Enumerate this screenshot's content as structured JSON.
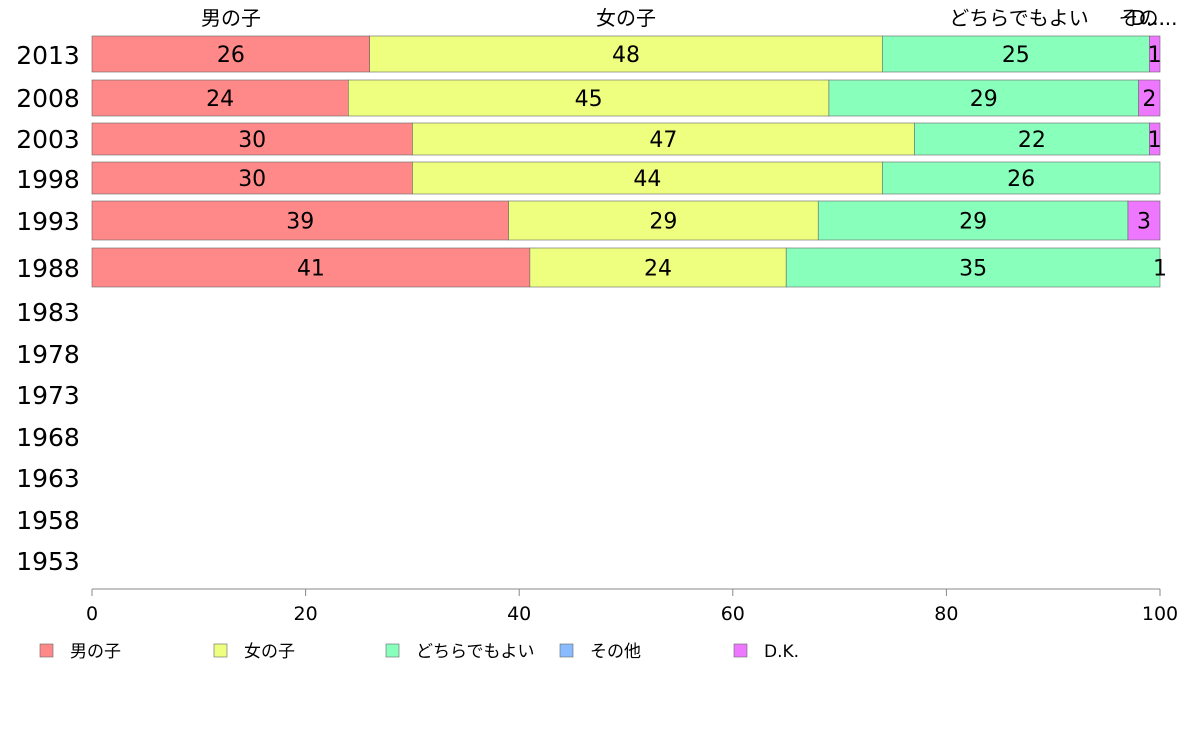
{
  "chart_data": {
    "type": "bar",
    "orientation": "horizontal",
    "stacked": true,
    "xlim": [
      0,
      100
    ],
    "x_ticks": [
      "0",
      "20",
      "40",
      "60",
      "80",
      "100"
    ],
    "categories": [
      "2013",
      "2008",
      "2003",
      "1998",
      "1993",
      "1988",
      "1983",
      "1978",
      "1973",
      "1968",
      "1963",
      "1958",
      "1953"
    ],
    "series": [
      {
        "name": "男の子",
        "color": "#ff8888",
        "values": [
          26,
          24,
          30,
          30,
          39,
          41,
          null,
          null,
          null,
          null,
          null,
          null,
          null
        ]
      },
      {
        "name": "女の子",
        "color": "#eeff80",
        "values": [
          48,
          45,
          47,
          44,
          29,
          24,
          null,
          null,
          null,
          null,
          null,
          null,
          null
        ]
      },
      {
        "name": "どちらでもよい",
        "color": "#88ffbb",
        "values": [
          25,
          29,
          22,
          26,
          29,
          35,
          null,
          null,
          null,
          null,
          null,
          null,
          null
        ]
      },
      {
        "name": "その他",
        "color": "#88bbff",
        "values": [
          0,
          0,
          0,
          0,
          0,
          0,
          null,
          null,
          null,
          null,
          null,
          null,
          null
        ]
      },
      {
        "name": "D.K.",
        "color": "#ee77ff",
        "values": [
          1,
          2,
          1,
          0,
          3,
          1,
          null,
          null,
          null,
          null,
          null,
          null,
          null
        ]
      }
    ],
    "top_labels": [
      "男の子",
      "女の子",
      "どちらでもよい",
      "その...",
      "D..."
    ],
    "legend": [
      "男の子",
      "女の子",
      "どちらでもよい",
      "その他",
      "D.K."
    ],
    "legend_position": "bottom",
    "grid": false
  }
}
